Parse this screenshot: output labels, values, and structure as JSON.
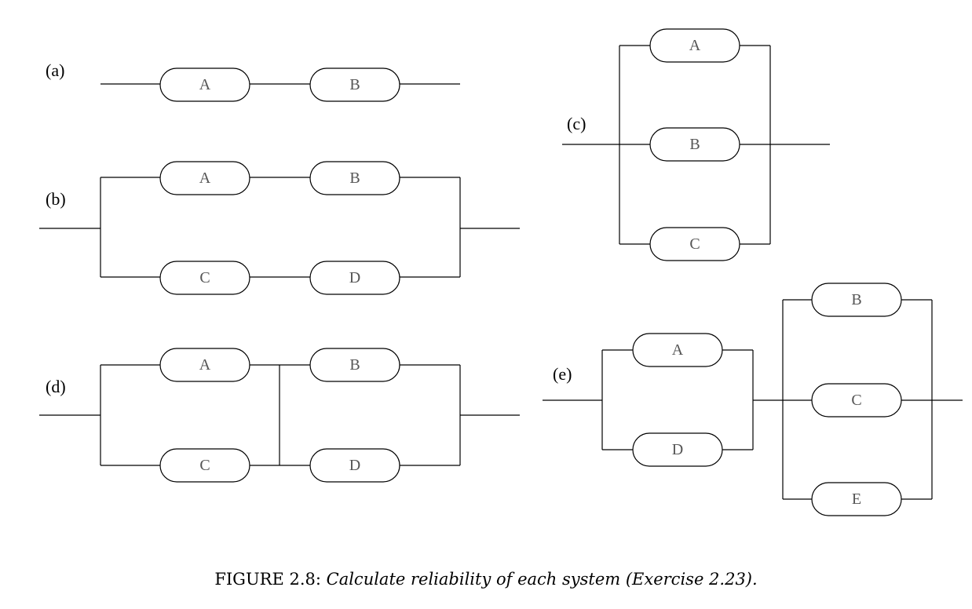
{
  "systems": {
    "a": {
      "label": "(a)",
      "blocks": [
        "A",
        "B"
      ]
    },
    "b": {
      "label": "(b)",
      "blocks": [
        "A",
        "B",
        "C",
        "D"
      ]
    },
    "c": {
      "label": "(c)",
      "blocks": [
        "A",
        "B",
        "C"
      ]
    },
    "d": {
      "label": "(d)",
      "blocks": [
        "A",
        "B",
        "C",
        "D"
      ]
    },
    "e": {
      "label": "(e)",
      "blocks": [
        "A",
        "D",
        "B",
        "C",
        "E"
      ]
    }
  },
  "caption": {
    "prefix": "FIGURE 2.8: ",
    "text": "Calculate reliability of each system (Exercise 2.23)."
  }
}
